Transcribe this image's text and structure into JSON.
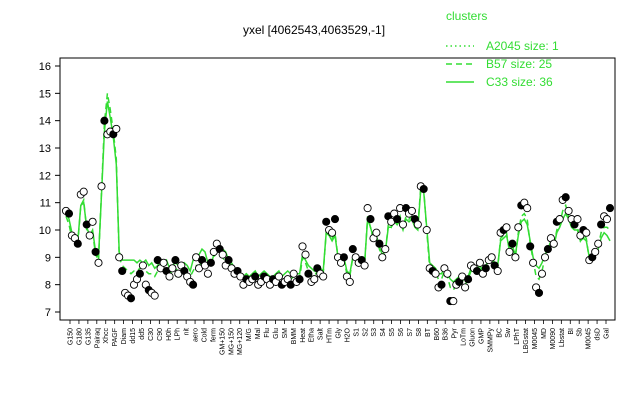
{
  "chart_data": {
    "type": "line",
    "title": "yxel [4062543,4063529,-1]",
    "xlabel": "",
    "ylabel": "",
    "ylim": [
      7,
      16
    ],
    "yticks": [
      7,
      8,
      9,
      10,
      11,
      12,
      13,
      14,
      15,
      16
    ],
    "grid": false,
    "legend_position": "top-right",
    "legend_title": "clusters",
    "series": [
      {
        "name": "A2045 size: 1",
        "style": "dotted",
        "color": "#33dd33"
      },
      {
        "name": "B57 size: 25",
        "style": "dashed",
        "color": "#33dd33"
      },
      {
        "name": "C33 size: 36",
        "style": "solid",
        "color": "#33dd33"
      }
    ],
    "x_tick_labels": [
      "G150",
      "G180",
      "G135",
      "Pairaq",
      "Xhcc",
      "PAGF",
      "Diam",
      "dd15",
      "dd5",
      "C30",
      "C90",
      "H0h",
      "LPh",
      "nit",
      "aero",
      "Cold",
      "ferm",
      "GM+150",
      "MG+150",
      "MG+120",
      "M/G",
      "Mal",
      "Flu",
      "Glu",
      "SM",
      "BMM",
      "Heat",
      "Etha",
      "Salt",
      "HTm",
      "Gly",
      "H2O",
      "S1",
      "S2",
      "S3",
      "S4",
      "S5",
      "S6",
      "S7",
      "S8",
      "BT",
      "B60",
      "B36",
      "Pyr",
      "LoTm",
      "Gluon",
      "GMP",
      "SMMPy",
      "BC",
      "Sw",
      "LPhT",
      "LBGstat",
      "M0045",
      "MD",
      "M0090",
      "Lbstat",
      "BI",
      "Sb",
      "M0045",
      "dsD",
      "Gal"
    ],
    "points": [
      10.7,
      10.6,
      9.8,
      9.7,
      9.5,
      11.3,
      11.4,
      10.2,
      9.8,
      10.3,
      9.2,
      8.8,
      11.6,
      14.0,
      13.5,
      13.6,
      13.5,
      13.7,
      9.0,
      8.5,
      7.7,
      7.6,
      7.5,
      8.0,
      8.2,
      8.4,
      8.7,
      8.0,
      7.8,
      7.7,
      7.6,
      8.9,
      8.6,
      8.8,
      8.5,
      8.3,
      8.6,
      8.9,
      8.4,
      8.7,
      8.5,
      8.3,
      8.1,
      8.0,
      9.0,
      8.6,
      8.9,
      8.7,
      8.4,
      8.8,
      9.2,
      9.5,
      9.3,
      9.1,
      8.7,
      8.9,
      8.6,
      8.4,
      8.5,
      8.3,
      8.0,
      8.2,
      8.1,
      8.2,
      8.3,
      8.0,
      8.1,
      8.3,
      8.2,
      8.0,
      8.2,
      8.1,
      8.3,
      8.0,
      8.1,
      8.2,
      8.0,
      8.4,
      8.1,
      8.2,
      9.4,
      9.1,
      8.4,
      8.1,
      8.2,
      8.6,
      8.4,
      8.3,
      10.3,
      10.0,
      9.9,
      10.4,
      9.0,
      8.8,
      9.0,
      8.3,
      8.1,
      9.3,
      9.0,
      8.8,
      8.9,
      8.7,
      10.8,
      10.4,
      9.7,
      9.9,
      9.5,
      9.0,
      9.3,
      10.5,
      10.3,
      10.6,
      10.4,
      10.8,
      10.2,
      10.8,
      10.6,
      10.7,
      10.4,
      10.2,
      11.6,
      11.5,
      10.0,
      8.6,
      8.5,
      8.4,
      7.9,
      8.0,
      8.6,
      8.4,
      7.4,
      7.4,
      8.0,
      8.1,
      8.3,
      7.9,
      8.2,
      8.7,
      8.6,
      8.5,
      8.8,
      8.4,
      8.6,
      8.9,
      9.0,
      8.7,
      8.5,
      9.9,
      10.0,
      10.1,
      9.2,
      9.5,
      9.0,
      10.1,
      10.9,
      11.0,
      10.8,
      9.4,
      8.8,
      7.9,
      7.7,
      8.4,
      9.0,
      9.3,
      9.7,
      9.5,
      10.3,
      10.4,
      11.1,
      11.2,
      10.7,
      10.4,
      10.2,
      10.4,
      9.8,
      10.0,
      9.9,
      8.9,
      9.0,
      9.2,
      9.5,
      10.2,
      10.5,
      10.4,
      10.8
    ],
    "line_solid": [
      10.7,
      10.4,
      9.9,
      9.8,
      9.6,
      10.9,
      11.0,
      10.1,
      9.8,
      10.0,
      9.2,
      9.0,
      11.3,
      13.6,
      14.7,
      14.1,
      13.4,
      12.4,
      9.2,
      8.9,
      8.9,
      8.9,
      8.9,
      8.9,
      8.8,
      8.9,
      8.8,
      8.9,
      8.7,
      8.8,
      8.6,
      8.7,
      8.9,
      8.8,
      8.9,
      8.6,
      8.7,
      8.8,
      8.7,
      8.6,
      8.8,
      8.7,
      8.5,
      8.9,
      8.9,
      9.1,
      9.3,
      9.2,
      8.8,
      8.7,
      9.1,
      9.2,
      9.4,
      9.3,
      9.2,
      8.9,
      8.8,
      8.6,
      8.4,
      8.4,
      8.3,
      8.4,
      8.3,
      8.4,
      8.5,
      8.3,
      8.4,
      8.5,
      8.4,
      8.3,
      8.3,
      8.4,
      8.5,
      8.3,
      8.4,
      8.5,
      8.4,
      8.5,
      8.4,
      8.4,
      9.1,
      8.9,
      8.7,
      8.6,
      8.5,
      8.7,
      8.6,
      8.5,
      9.9,
      9.8,
      9.6,
      9.8,
      9.0,
      8.9,
      9.0,
      8.5,
      8.4,
      9.0,
      9.0,
      8.9,
      8.9,
      8.8,
      10.4,
      10.1,
      9.7,
      9.8,
      9.4,
      9.1,
      9.2,
      10.1,
      10.1,
      10.3,
      10.2,
      10.3,
      10.0,
      10.4,
      10.3,
      10.4,
      10.1,
      10.0,
      11.5,
      11.4,
      10.1,
      8.8,
      8.7,
      8.6,
      8.4,
      8.4,
      8.6,
      8.4,
      8.2,
      8.1,
      8.2,
      8.3,
      8.3,
      8.2,
      8.3,
      8.6,
      8.6,
      8.6,
      8.7,
      8.5,
      8.7,
      8.9,
      9.0,
      8.8,
      8.7,
      9.6,
      9.7,
      9.8,
      9.3,
      9.4,
      9.1,
      9.8,
      10.3,
      10.4,
      10.2,
      9.6,
      9.0,
      8.7,
      8.6,
      8.8,
      9.1,
      9.3,
      9.6,
      9.4,
      9.9,
      10.1,
      10.4,
      10.6,
      10.4,
      10.1,
      10.0,
      10.0,
      9.6,
      9.7,
      9.6,
      9.0,
      9.0,
      9.1,
      9.3,
      9.7,
      9.9,
      9.8,
      9.6
    ],
    "line_dashed": [
      10.5,
      10.2,
      9.7,
      9.6,
      9.5,
      10.9,
      11.1,
      10.0,
      9.7,
      9.9,
      9.1,
      8.9,
      11.4,
      13.9,
      15.0,
      14.4,
      13.6,
      12.6,
      9.0,
      8.7,
      8.6,
      8.5,
      8.4,
      8.5,
      8.5,
      8.6,
      8.6,
      8.5,
      8.4,
      8.4,
      8.3,
      8.5,
      8.6,
      8.6,
      8.5,
      8.4,
      8.5,
      8.6,
      8.5,
      8.5,
      8.5,
      8.4,
      8.3,
      8.5,
      8.7,
      8.7,
      8.8,
      8.8,
      8.6,
      8.7,
      9.0,
      9.2,
      9.1,
      9.0,
      8.8,
      8.8,
      8.7,
      8.5,
      8.4,
      8.3,
      8.2,
      8.2,
      8.2,
      8.2,
      8.3,
      8.2,
      8.2,
      8.3,
      8.2,
      8.2,
      8.2,
      8.2,
      8.3,
      8.2,
      8.2,
      8.3,
      8.2,
      8.3,
      8.2,
      8.2,
      9.0,
      8.8,
      8.5,
      8.3,
      8.3,
      8.5,
      8.4,
      8.4,
      9.9,
      9.8,
      9.7,
      9.9,
      9.0,
      8.8,
      8.9,
      8.4,
      8.3,
      9.0,
      8.9,
      8.8,
      8.8,
      8.7,
      10.5,
      10.1,
      9.6,
      9.7,
      9.3,
      9.0,
      9.2,
      10.2,
      10.1,
      10.4,
      10.2,
      10.5,
      10.1,
      10.5,
      10.4,
      10.5,
      10.2,
      10.1,
      11.6,
      11.5,
      10.0,
      8.6,
      8.5,
      8.4,
      8.2,
      8.2,
      8.5,
      8.3,
      7.9,
      7.8,
      8.0,
      8.1,
      8.2,
      8.0,
      8.2,
      8.5,
      8.5,
      8.5,
      8.7,
      8.4,
      8.6,
      8.8,
      8.9,
      8.7,
      8.6,
      9.7,
      9.8,
      9.9,
      9.2,
      9.4,
      9.0,
      9.9,
      10.5,
      10.6,
      10.4,
      9.5,
      8.9,
      8.3,
      8.2,
      8.5,
      9.0,
      9.2,
      9.6,
      9.4,
      10.0,
      10.2,
      10.7,
      10.9,
      10.5,
      10.2,
      10.1,
      10.1,
      9.6,
      9.8,
      9.7,
      8.9,
      9.0,
      9.1,
      9.4,
      9.9,
      10.1,
      10.1,
      10.0
    ]
  },
  "legend": {
    "title": "clusters",
    "items": [
      {
        "label": "A2045 size: 1"
      },
      {
        "label": "B57 size: 25"
      },
      {
        "label": "C33 size: 36"
      }
    ]
  }
}
